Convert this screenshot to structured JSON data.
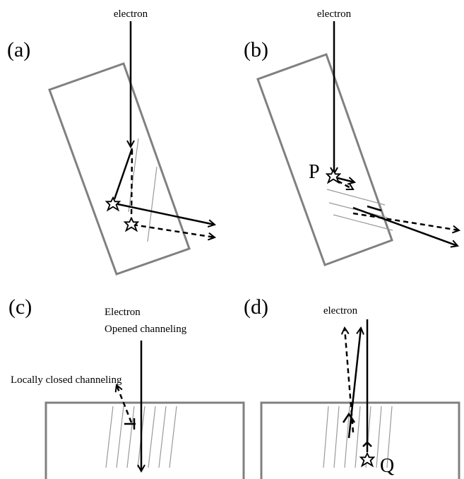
{
  "panels": [
    {
      "label": "(a)",
      "texts": [
        "electron"
      ]
    },
    {
      "label": "(b)",
      "texts": [
        "electron",
        "P"
      ]
    },
    {
      "label": "(c)",
      "texts": [
        "Electron",
        "Opened channeling",
        "Locally closed channeling"
      ]
    },
    {
      "label": "(d)",
      "texts": [
        "electron",
        "Q"
      ]
    }
  ]
}
